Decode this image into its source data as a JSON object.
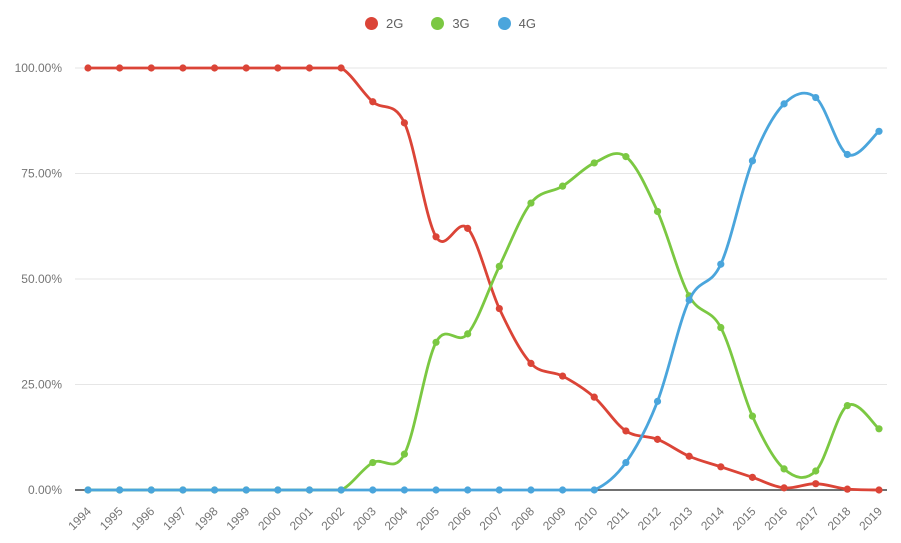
{
  "chart_data": {
    "type": "line",
    "title": "",
    "curve": "smooth",
    "grid": true,
    "legend_position": "top-center",
    "ylim": [
      0,
      100
    ],
    "y_ticks": [
      "0.00%",
      "25.00%",
      "50.00%",
      "75.00%",
      "100.00%"
    ],
    "y_tick_values": [
      0,
      25,
      50,
      75,
      100
    ],
    "x": [
      1994,
      1995,
      1996,
      1997,
      1998,
      1999,
      2000,
      2001,
      2002,
      2003,
      2004,
      2005,
      2006,
      2007,
      2008,
      2009,
      2010,
      2011,
      2012,
      2013,
      2014,
      2015,
      2016,
      2017,
      2018,
      2019
    ],
    "series": [
      {
        "name": "2G",
        "color": "#db4437",
        "values": [
          100,
          100,
          100,
          100,
          100,
          100,
          100,
          100,
          100,
          92,
          87,
          60,
          62,
          43,
          30,
          27,
          22,
          14,
          12,
          8,
          5.5,
          3,
          0.5,
          1.5,
          0.2,
          0
        ]
      },
      {
        "name": "3G",
        "color": "#7bc842",
        "values": [
          0,
          0,
          0,
          0,
          0,
          0,
          0,
          0,
          0,
          6.5,
          8.5,
          35,
          37,
          53,
          68,
          72,
          77.5,
          79,
          66,
          46,
          38.5,
          17.5,
          5,
          4.5,
          20,
          14.5
        ]
      },
      {
        "name": "4G",
        "color": "#4aa5dc",
        "values": [
          0,
          0,
          0,
          0,
          0,
          0,
          0,
          0,
          0,
          0,
          0,
          0,
          0,
          0,
          0,
          0,
          0,
          6.5,
          21,
          45,
          53.5,
          78,
          91.5,
          93,
          79.5,
          85
        ]
      }
    ],
    "colors": {
      "gridline": "#e6e6e6",
      "baseline": "#424242",
      "tick_label": "#757575",
      "legend_label": "#616161",
      "background": "#ffffff"
    }
  }
}
